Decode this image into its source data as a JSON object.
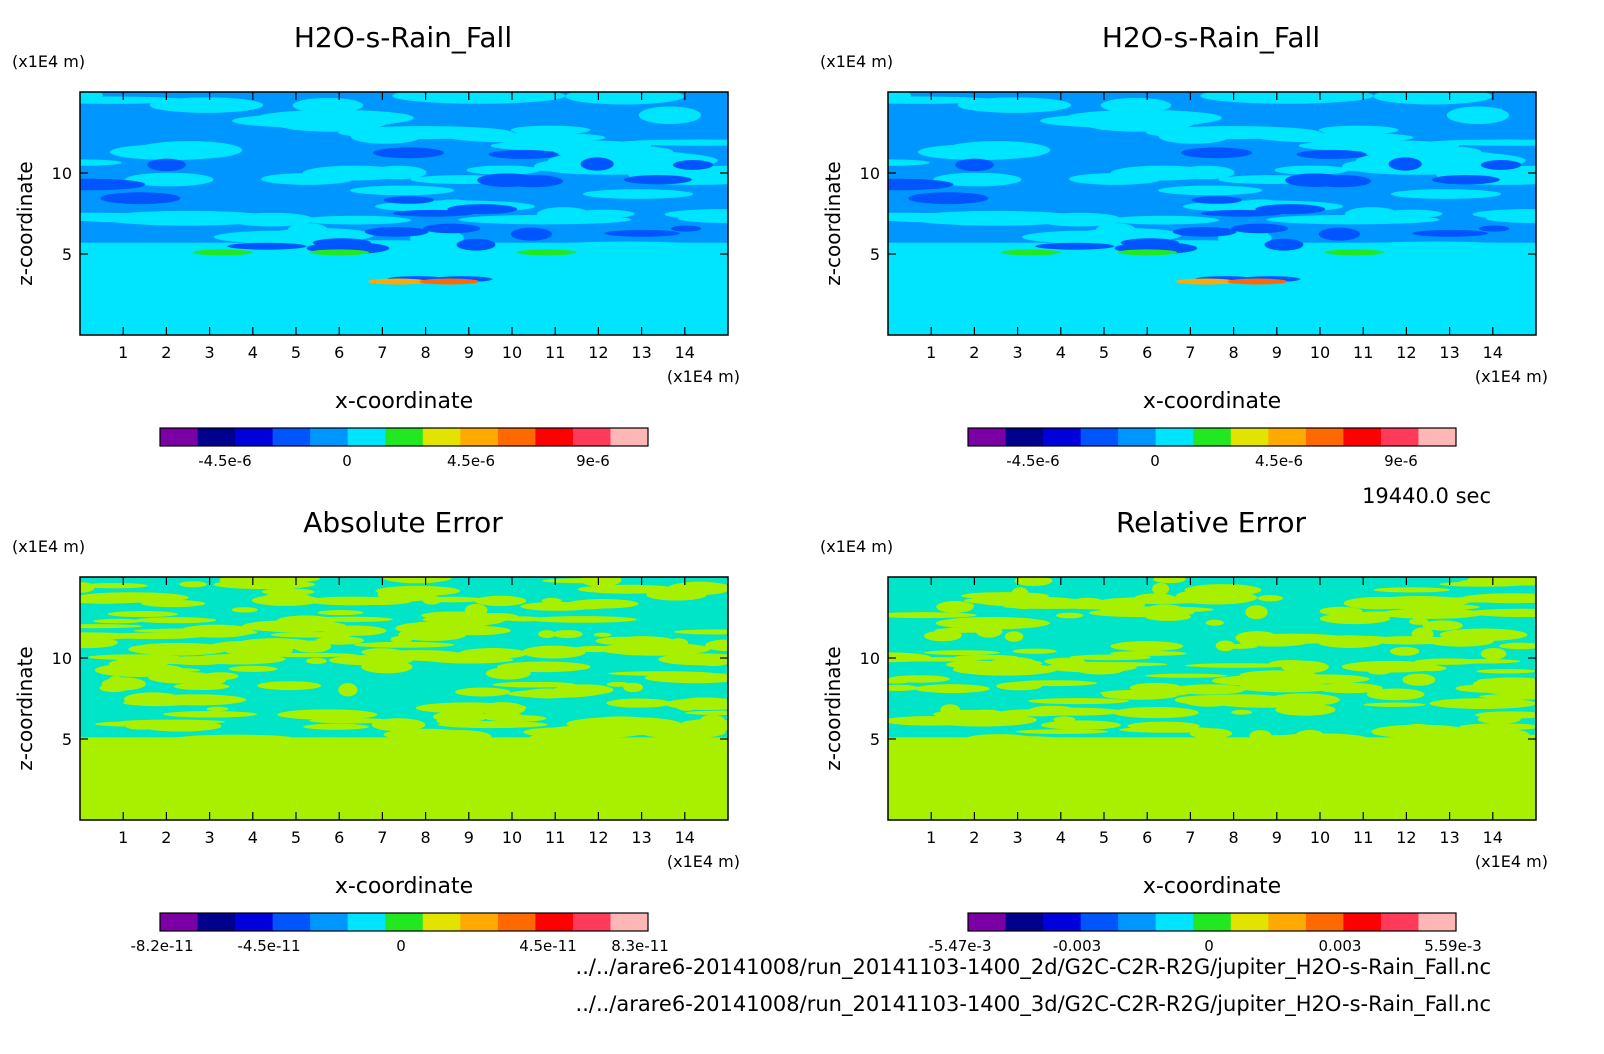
{
  "time_label": "19440.0 sec",
  "footer": {
    "line1": "../../arare6-20141008/run_20141103-1400_2d/G2C-C2R-R2G/jupiter_H2O-s-Rain_Fall.nc",
    "line2": "../../arare6-20141008/run_20141103-1400_3d/G2C-C2R-R2G/jupiter_H2O-s-Rain_Fall.nc"
  },
  "colorbar_colors": [
    "#7a00a6",
    "#00008c",
    "#0000dc",
    "#0055ff",
    "#0096ff",
    "#00e5ff",
    "#22e822",
    "#e3e300",
    "#ffaa00",
    "#ff6a00",
    "#ff0000",
    "#ff3a5a",
    "#ffb6b6"
  ],
  "chart_data": [
    {
      "type": "heatmap",
      "title": "H2O-s-Rain_Fall",
      "xlabel": "x-coordinate",
      "ylabel": "z-coordinate",
      "x_unit": "(x1E4 m)",
      "y_unit": "(x1E4 m)",
      "xlim": [
        0,
        15
      ],
      "ylim": [
        0,
        15
      ],
      "x_ticks": [
        "1",
        "2",
        "3",
        "4",
        "5",
        "6",
        "7",
        "8",
        "9",
        "10",
        "11",
        "12",
        "13",
        "14"
      ],
      "y_ticks": [
        "5",
        "10"
      ],
      "field_colors": [
        "#0096ff",
        "#00e5ff",
        "#0055ff"
      ],
      "colorbar_ticks": [
        "-4.5e-6",
        "0",
        "4.5e-6",
        "9e-6"
      ]
    },
    {
      "type": "heatmap",
      "title": "H2O-s-Rain_Fall",
      "xlabel": "x-coordinate",
      "ylabel": "z-coordinate",
      "x_unit": "(x1E4 m)",
      "y_unit": "(x1E4 m)",
      "xlim": [
        0,
        15
      ],
      "ylim": [
        0,
        15
      ],
      "x_ticks": [
        "1",
        "2",
        "3",
        "4",
        "5",
        "6",
        "7",
        "8",
        "9",
        "10",
        "11",
        "12",
        "13",
        "14"
      ],
      "y_ticks": [
        "5",
        "10"
      ],
      "field_colors": [
        "#0096ff",
        "#00e5ff",
        "#0055ff"
      ],
      "colorbar_ticks": [
        "-4.5e-6",
        "0",
        "4.5e-6",
        "9e-6"
      ]
    },
    {
      "type": "heatmap",
      "title": "Absolute Error",
      "xlabel": "x-coordinate",
      "ylabel": "z-coordinate",
      "x_unit": "(x1E4 m)",
      "y_unit": "(x1E4 m)",
      "xlim": [
        0,
        15
      ],
      "ylim": [
        0,
        15
      ],
      "x_ticks": [
        "1",
        "2",
        "3",
        "4",
        "5",
        "6",
        "7",
        "8",
        "9",
        "10",
        "11",
        "12",
        "13",
        "14"
      ],
      "y_ticks": [
        "5",
        "10"
      ],
      "field_colors": [
        "#a8f000",
        "#00e5c8"
      ],
      "colorbar_ticks": [
        "-8.2e-11",
        "-4.5e-11",
        "0",
        "4.5e-11",
        "8.3e-11"
      ]
    },
    {
      "type": "heatmap",
      "title": "Relative Error",
      "xlabel": "x-coordinate",
      "ylabel": "z-coordinate",
      "x_unit": "(x1E4 m)",
      "y_unit": "(x1E4 m)",
      "xlim": [
        0,
        15
      ],
      "ylim": [
        0,
        15
      ],
      "x_ticks": [
        "1",
        "2",
        "3",
        "4",
        "5",
        "6",
        "7",
        "8",
        "9",
        "10",
        "11",
        "12",
        "13",
        "14"
      ],
      "y_ticks": [
        "5",
        "10"
      ],
      "field_colors": [
        "#a8f000",
        "#00e5c8"
      ],
      "colorbar_ticks": [
        "-5.47e-3",
        "-0.003",
        "0",
        "0.003",
        "5.59e-3"
      ]
    }
  ]
}
